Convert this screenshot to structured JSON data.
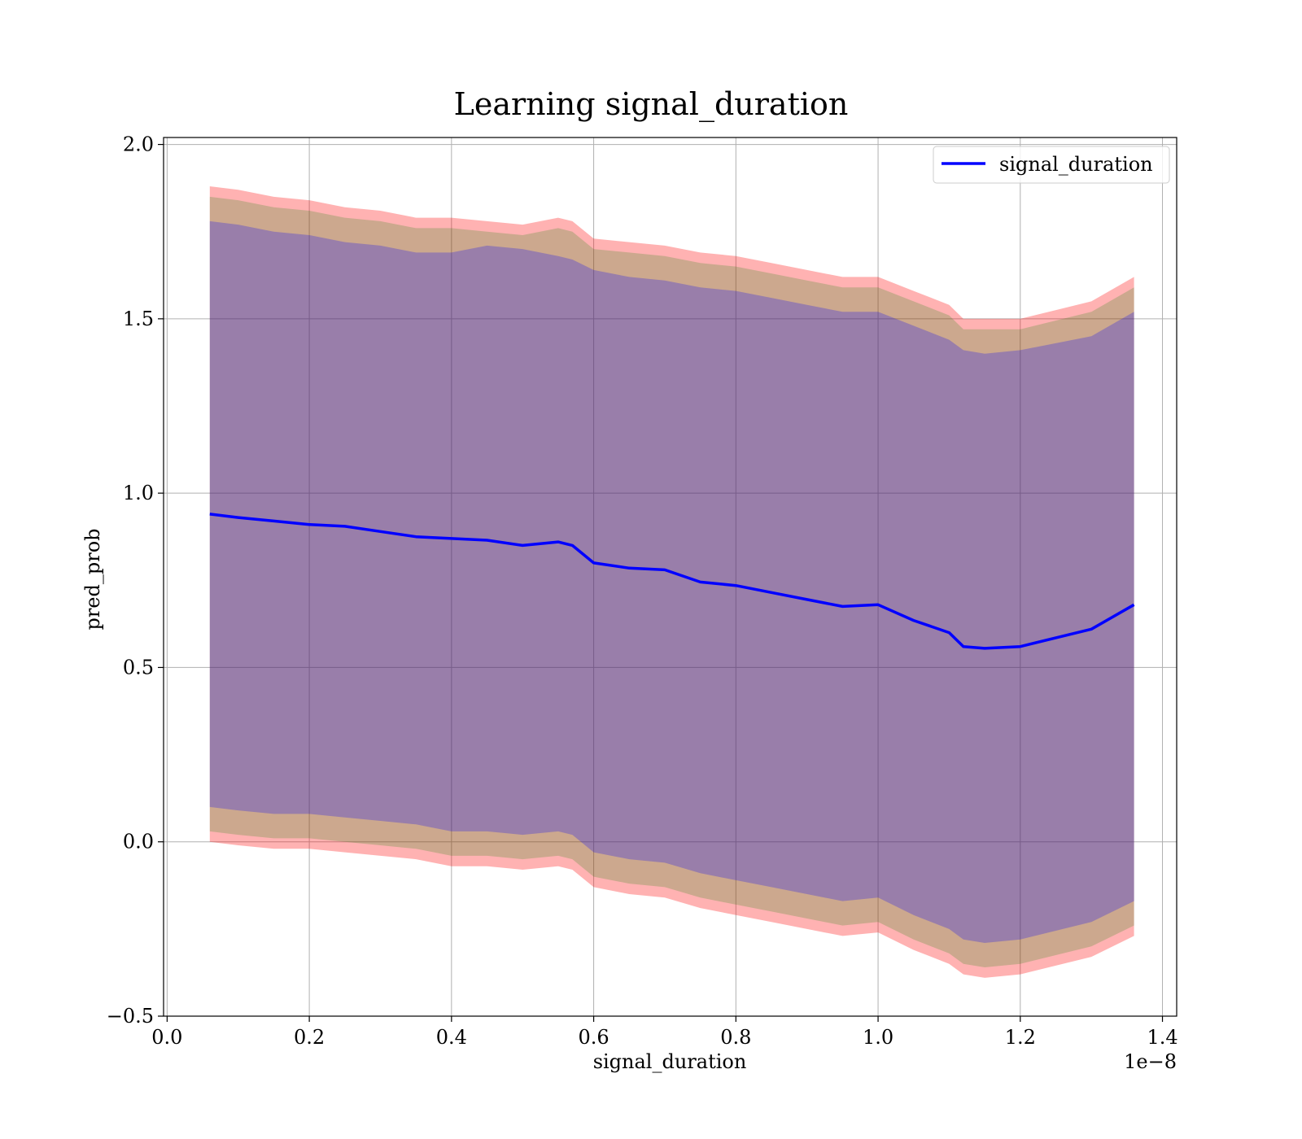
{
  "chart_data": {
    "type": "area",
    "title": "Learning signal_duration",
    "xlabel": "signal_duration",
    "ylabel": "pred_prob",
    "x_offset_label": "1e−8",
    "xlim": [
      -0.005,
      1.42
    ],
    "ylim": [
      -0.5,
      2.02
    ],
    "x_ticks": [
      0.0,
      0.2,
      0.4,
      0.6,
      0.8,
      1.0,
      1.2,
      1.4
    ],
    "x_tick_labels": [
      "0.0",
      "0.2",
      "0.4",
      "0.6",
      "0.8",
      "1.0",
      "1.2",
      "1.4"
    ],
    "y_ticks": [
      -0.5,
      0.0,
      0.5,
      1.0,
      1.5,
      2.0
    ],
    "y_tick_labels": [
      "−0.5",
      "0.0",
      "0.5",
      "1.0",
      "1.5",
      "2.0"
    ],
    "grid": true,
    "legend_position": "upper right",
    "x": [
      0.06,
      0.1,
      0.15,
      0.2,
      0.25,
      0.3,
      0.35,
      0.4,
      0.45,
      0.5,
      0.55,
      0.57,
      0.6,
      0.65,
      0.7,
      0.75,
      0.8,
      0.85,
      0.9,
      0.95,
      1.0,
      1.05,
      1.1,
      1.12,
      1.15,
      1.2,
      1.3,
      1.36
    ],
    "series": [
      {
        "name": "signal_duration",
        "color": "#0000ff",
        "values": [
          0.94,
          0.93,
          0.92,
          0.91,
          0.905,
          0.89,
          0.875,
          0.87,
          0.865,
          0.85,
          0.86,
          0.85,
          0.8,
          0.785,
          0.78,
          0.745,
          0.735,
          0.715,
          0.695,
          0.675,
          0.68,
          0.635,
          0.6,
          0.56,
          0.555,
          0.56,
          0.61,
          0.68
        ]
      }
    ],
    "bands": [
      {
        "color": "#ff0000",
        "opacity": 0.3,
        "upper": [
          1.88,
          1.87,
          1.85,
          1.84,
          1.82,
          1.81,
          1.79,
          1.79,
          1.78,
          1.77,
          1.79,
          1.78,
          1.73,
          1.72,
          1.71,
          1.69,
          1.68,
          1.66,
          1.64,
          1.62,
          1.62,
          1.58,
          1.54,
          1.5,
          1.5,
          1.5,
          1.55,
          1.62
        ],
        "lower": [
          0.0,
          -0.01,
          -0.02,
          -0.02,
          -0.03,
          -0.04,
          -0.05,
          -0.07,
          -0.07,
          -0.08,
          -0.07,
          -0.08,
          -0.13,
          -0.15,
          -0.16,
          -0.19,
          -0.21,
          -0.23,
          -0.25,
          -0.27,
          -0.26,
          -0.31,
          -0.35,
          -0.38,
          -0.39,
          -0.38,
          -0.33,
          -0.27
        ]
      },
      {
        "color": "#008000",
        "opacity": 0.2,
        "upper": [
          1.85,
          1.84,
          1.82,
          1.81,
          1.79,
          1.78,
          1.76,
          1.76,
          1.75,
          1.74,
          1.76,
          1.75,
          1.7,
          1.69,
          1.68,
          1.66,
          1.65,
          1.63,
          1.61,
          1.59,
          1.59,
          1.55,
          1.51,
          1.47,
          1.47,
          1.47,
          1.52,
          1.59
        ],
        "lower": [
          0.03,
          0.02,
          0.01,
          0.01,
          0.0,
          -0.01,
          -0.02,
          -0.04,
          -0.04,
          -0.05,
          -0.04,
          -0.05,
          -0.1,
          -0.12,
          -0.13,
          -0.16,
          -0.18,
          -0.2,
          -0.22,
          -0.24,
          -0.23,
          -0.28,
          -0.32,
          -0.35,
          -0.36,
          -0.35,
          -0.3,
          -0.24
        ]
      },
      {
        "color": "#0000ff",
        "opacity": 0.25,
        "upper": [
          1.78,
          1.77,
          1.75,
          1.74,
          1.72,
          1.71,
          1.69,
          1.69,
          1.71,
          1.7,
          1.68,
          1.67,
          1.64,
          1.62,
          1.61,
          1.59,
          1.58,
          1.56,
          1.54,
          1.52,
          1.52,
          1.48,
          1.44,
          1.41,
          1.4,
          1.41,
          1.45,
          1.52
        ],
        "lower": [
          0.1,
          0.09,
          0.08,
          0.08,
          0.07,
          0.06,
          0.05,
          0.03,
          0.03,
          0.02,
          0.03,
          0.02,
          -0.03,
          -0.05,
          -0.06,
          -0.09,
          -0.11,
          -0.13,
          -0.15,
          -0.17,
          -0.16,
          -0.21,
          -0.25,
          -0.28,
          -0.29,
          -0.28,
          -0.23,
          -0.17
        ]
      }
    ]
  }
}
